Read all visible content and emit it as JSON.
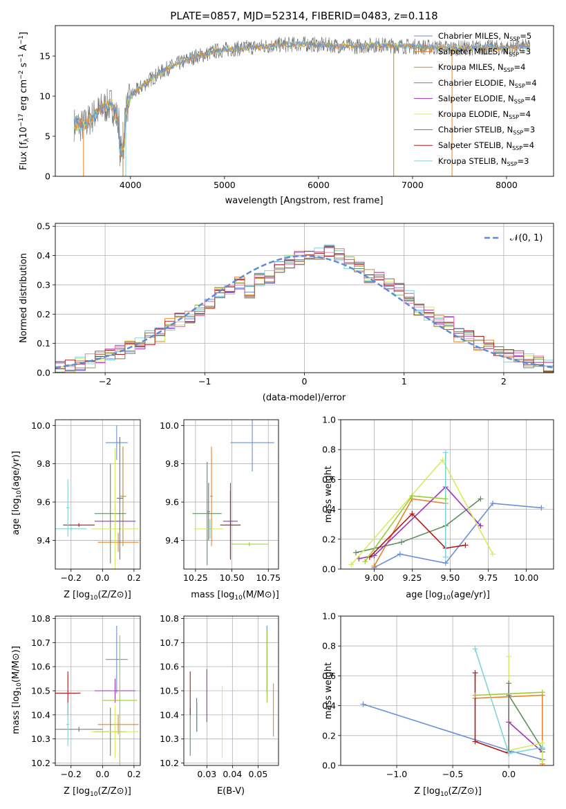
{
  "figure_title": "PLATE=0857, MJD=52314, FIBERID=0483, z=0.118",
  "models": [
    {
      "label": "Chabrier MILES, N$_{SSP}$=5",
      "legend": "Chabrier MILES, N",
      "n": "=5",
      "color": "#6a8fd6"
    },
    {
      "label": "Salpeter MILES, N$_{SSP}$=3",
      "legend": "Salpeter MILES, N",
      "n": "=3",
      "color": "#e8822a"
    },
    {
      "label": "Kroupa MILES, N$_{SSP}$=4",
      "legend": "Kroupa MILES, N",
      "n": "=4",
      "color": "#c08a2c"
    },
    {
      "label": "Chabrier ELODIE, N$_{SSP}$=4",
      "legend": "Chabrier ELODIE, N",
      "n": "=4",
      "color": "#5c8f5c"
    },
    {
      "label": "Salpeter ELODIE, N$_{SSP}$=4",
      "legend": "Salpeter ELODIE, N",
      "n": "=4",
      "color": "#a030b8"
    },
    {
      "label": "Kroupa ELODIE, N$_{SSP}$=4",
      "legend": "Kroupa ELODIE, N",
      "n": "=4",
      "color": "#d8ea60"
    },
    {
      "label": "Chabrier STELIB, N$_{SSP}$=3",
      "legend": "Chabrier STELIB, N",
      "n": "=3",
      "color": "#707070"
    },
    {
      "label": "Salpeter STELIB, N$_{SSP}$=4",
      "legend": "Salpeter STELIB, N",
      "n": "=4",
      "color": "#b01818"
    },
    {
      "label": "Kroupa STELIB, N$_{SSP}$=3",
      "legend": "Kroupa STELIB, N",
      "n": "=3",
      "color": "#7fd3dc"
    }
  ],
  "legend_sub": "SSP",
  "chart_data": [
    {
      "type": "line",
      "xlabel": "wavelength [Angstrom, rest frame]",
      "ylabel": "Flux [f",
      "ylabel_full": "Flux [f_λ 10^-17 erg cm^-2 s^-1 A^-1]",
      "ylabel_parts": [
        "λ",
        "10",
        "−17",
        " erg cm",
        "−2",
        " s",
        "−1",
        " A",
        "−1",
        "]"
      ],
      "xlim": [
        3200,
        8500
      ],
      "ylim": [
        0,
        18.8
      ],
      "xticks": [
        "4000",
        "5000",
        "6000",
        "7000",
        "8000"
      ],
      "yticks": [
        "0",
        "5",
        "10",
        "15"
      ],
      "spectrum_envelope": {
        "x": [
          3400,
          3500,
          3600,
          3700,
          3800,
          3900,
          4000,
          4100,
          4200,
          4300,
          4400,
          4500,
          4600,
          4700,
          4800,
          4900,
          5000,
          5200,
          5400,
          5600,
          5800,
          6000,
          6200,
          6400,
          6600,
          6800,
          7000,
          7200,
          7400,
          7600,
          7800,
          8000,
          8200
        ],
        "y": [
          6.5,
          6.3,
          7.5,
          8.5,
          9.0,
          6.0,
          10.0,
          11.0,
          12.0,
          12.8,
          13.5,
          14.0,
          14.5,
          15.0,
          15.2,
          15.6,
          15.8,
          16.0,
          16.2,
          16.4,
          16.5,
          16.4,
          16.3,
          16.2,
          16.4,
          16.3,
          16.2,
          16.1,
          16.0,
          16.0,
          16.1,
          16.0,
          16.2
        ]
      }
    },
    {
      "type": "histogram",
      "xlabel": "(data-model)/error",
      "ylabel": "Normed distribution",
      "xlim": [
        -2.5,
        2.5
      ],
      "ylim": [
        0,
        0.51
      ],
      "xticks": [
        "−2",
        "−1",
        "0",
        "1",
        "2"
      ],
      "yticks": [
        "0.0",
        "0.1",
        "0.2",
        "0.3",
        "0.4",
        "0.5"
      ],
      "legend": "𝒩(0, 1)",
      "bin_width": 0.1,
      "bins_start": -2.5,
      "density_mean": [
        0.02,
        0.025,
        0.03,
        0.04,
        0.05,
        0.06,
        0.07,
        0.09,
        0.1,
        0.12,
        0.13,
        0.16,
        0.18,
        0.19,
        0.21,
        0.24,
        0.28,
        0.29,
        0.31,
        0.28,
        0.32,
        0.33,
        0.36,
        0.38,
        0.39,
        0.4,
        0.41,
        0.42,
        0.41,
        0.38,
        0.36,
        0.33,
        0.32,
        0.3,
        0.28,
        0.26,
        0.22,
        0.2,
        0.18,
        0.17,
        0.13,
        0.12,
        0.1,
        0.09,
        0.07,
        0.06,
        0.05,
        0.04,
        0.04,
        0.02
      ]
    },
    {
      "type": "scatter",
      "xlabel": "Z [log",
      "xlabel_full": "Z [log10(Z/Z⊙)]",
      "ylabel": "age  [log",
      "ylabel_full": "age [log10(age/yr)]",
      "xlim": [
        -0.3,
        0.24
      ],
      "ylim": [
        9.25,
        10.03
      ],
      "xticks": [
        "−0.2",
        "0.0",
        "0.2"
      ],
      "yticks": [
        "9.4",
        "9.6",
        "9.8",
        "10.0"
      ],
      "points": [
        {
          "model": 0,
          "x": 0.09,
          "y": 9.91,
          "xerr": 0.07,
          "yerr": 0.09
        },
        {
          "model": 1,
          "x": 0.1,
          "y": 9.39,
          "xerr": 0.13,
          "yerr": 0.05
        },
        {
          "model": 2,
          "x": 0.13,
          "y": 9.63,
          "xerr": 0.02,
          "yerr": 0.26
        },
        {
          "model": 3,
          "x": 0.05,
          "y": 9.54,
          "xerr": 0.1,
          "yerr": 0.26
        },
        {
          "model": 4,
          "x": 0.08,
          "y": 9.5,
          "xerr": 0.13,
          "yerr": 0.08
        },
        {
          "model": 5,
          "x": 0.08,
          "y": 9.46,
          "xerr": 0.15,
          "yerr": 0.42
        },
        {
          "model": 6,
          "x": 0.11,
          "y": 9.62,
          "xerr": 0.02,
          "yerr": 0.32
        },
        {
          "model": 7,
          "x": -0.15,
          "y": 9.48,
          "xerr": 0.1,
          "yerr": 0.01
        },
        {
          "model": 8,
          "x": -0.22,
          "y": 9.57,
          "xerr": 0.01,
          "yerr": 0.15
        },
        {
          "model": 8,
          "x": -0.2,
          "y": 9.46,
          "xerr": 0.1,
          "yerr": 0.01
        }
      ]
    },
    {
      "type": "scatter",
      "xlabel": "mass [log",
      "xlabel_full": "mass [log10(M/M⊙)]",
      "ylabel": "",
      "xlim": [
        10.17,
        10.82
      ],
      "ylim": [
        9.25,
        10.03
      ],
      "xticks": [
        "10.25",
        "10.50",
        "10.75"
      ],
      "yticks": [
        "9.4",
        "9.6",
        "9.8",
        "10.0"
      ],
      "points": [
        {
          "model": 0,
          "x": 10.64,
          "y": 9.91,
          "xerr": 0.15,
          "yerr": 0.15
        },
        {
          "model": 1,
          "x": 10.36,
          "y": 9.63,
          "xerr": 0.01,
          "yerr": 0.26
        },
        {
          "model": 3,
          "x": 10.33,
          "y": 9.54,
          "xerr": 0.1,
          "yerr": 0.27
        },
        {
          "model": 4,
          "x": 10.49,
          "y": 9.5,
          "xerr": 0.05,
          "yerr": 0.2
        },
        {
          "model": 5,
          "x": 10.34,
          "y": 9.46,
          "xerr": 0.1,
          "yerr": 0.05
        },
        {
          "model": 6,
          "x": 10.34,
          "y": 9.55,
          "xerr": 0.01,
          "yerr": 0.15
        },
        {
          "model": 7,
          "x": 10.49,
          "y": 9.48,
          "xerr": 0.07,
          "yerr": 0.18
        },
        {
          "model": 8,
          "x": 10.35,
          "y": 9.46,
          "xerr": 0.01,
          "yerr": 0.05
        },
        {
          "model": 9,
          "x": 10.62,
          "y": 9.38,
          "xerr": 0.13,
          "yerr": 0.01
        }
      ]
    },
    {
      "type": "line",
      "xlabel": "age  [log",
      "xlabel_full": "age [log10(age/yr)]",
      "ylabel": "mass weight",
      "xlim": [
        8.78,
        10.18
      ],
      "ylim": [
        0,
        1
      ],
      "xticks": [
        "9.00",
        "9.25",
        "9.50",
        "9.75",
        "10.00"
      ],
      "yticks": [
        "0.0",
        "0.2",
        "0.4",
        "0.6",
        "0.8",
        "1.0"
      ],
      "series": [
        {
          "model": 0,
          "x": [
            9.0,
            9.17,
            9.47,
            9.78,
            10.1
          ],
          "y": [
            0.01,
            0.1,
            0.04,
            0.44,
            0.41
          ]
        },
        {
          "model": 1,
          "x": [
            9.0,
            9.25,
            9.47
          ],
          "y": [
            0.02,
            0.47,
            0.44
          ]
        },
        {
          "model": 3,
          "x": [
            8.88,
            9.18,
            9.47,
            9.7
          ],
          "y": [
            0.11,
            0.18,
            0.29,
            0.47
          ]
        },
        {
          "model": 4,
          "x": [
            8.9,
            9.0,
            9.47,
            9.7
          ],
          "y": [
            0.07,
            0.09,
            0.55,
            0.29
          ]
        },
        {
          "model": 5,
          "x": [
            8.85,
            9.45,
            9.78
          ],
          "y": [
            0.03,
            0.73,
            0.1
          ]
        },
        {
          "model": 7,
          "x": [
            8.97,
            9.25,
            9.47,
            9.6
          ],
          "y": [
            0.08,
            0.37,
            0.14,
            0.16
          ]
        },
        {
          "model": 8,
          "x": [
            9.47,
            9.47
          ],
          "y": [
            0.78,
            0.08
          ]
        },
        {
          "model": 9,
          "x": [
            8.94,
            9.25,
            9.47
          ],
          "y": [
            0.05,
            0.49,
            0.47
          ]
        }
      ]
    },
    {
      "type": "scatter",
      "xlabel": "Z [log",
      "xlabel_full": "Z [log10(Z/Z⊙)]",
      "ylabel": "mass [log",
      "ylabel_full": "mass [log10(M/M⊙)]",
      "xlim": [
        -0.3,
        0.24
      ],
      "ylim": [
        10.19,
        10.81
      ],
      "xticks": [
        "−0.2",
        "0.0",
        "0.2"
      ],
      "yticks": [
        "10.2",
        "10.3",
        "10.4",
        "10.5",
        "10.6",
        "10.7",
        "10.8"
      ],
      "points": [
        {
          "model": 0,
          "x": 0.09,
          "y": 10.63,
          "xerr": 0.07,
          "yerr": 0.14
        },
        {
          "model": 1,
          "x": 0.1,
          "y": 10.36,
          "xerr": 0.13,
          "yerr": 0.04
        },
        {
          "model": 3,
          "x": 0.05,
          "y": 10.33,
          "xerr": 0.1,
          "yerr": 0.1
        },
        {
          "model": 4,
          "x": 0.08,
          "y": 10.5,
          "xerr": 0.13,
          "yerr": 0.05
        },
        {
          "model": 5,
          "x": 0.08,
          "y": 10.33,
          "xerr": 0.15,
          "yerr": 0.11
        },
        {
          "model": 6,
          "x": -0.15,
          "y": 10.34,
          "xerr": 0.15,
          "yerr": 0.01
        },
        {
          "model": 7,
          "x": -0.22,
          "y": 10.49,
          "xerr": 0.08,
          "yerr": 0.09
        },
        {
          "model": 8,
          "x": -0.22,
          "y": 10.36,
          "xerr": 0.01,
          "yerr": 0.09
        },
        {
          "model": 9,
          "x": 0.11,
          "y": 10.46,
          "xerr": 0.11,
          "yerr": 0.27
        }
      ]
    },
    {
      "type": "scatter",
      "xlabel": "E(B-V)",
      "ylabel": "",
      "xlim": [
        0.021,
        0.058
      ],
      "ylim": [
        10.19,
        10.81
      ],
      "xticks": [
        "0.03",
        "0.04",
        "0.05"
      ],
      "yticks": [
        "10.2",
        "10.3",
        "10.4",
        "10.5",
        "10.6",
        "10.7",
        "10.8"
      ],
      "points": [
        {
          "model": 0,
          "x": 0.0535,
          "y": 10.63,
          "yerr": 0.14
        },
        {
          "model": 1,
          "x": 0.056,
          "y": 10.42,
          "yerr": 0.11
        },
        {
          "model": 3,
          "x": 0.0235,
          "y": 10.33,
          "yerr": 0.1
        },
        {
          "model": 4,
          "x": 0.03,
          "y": 10.48,
          "yerr": 0.11
        },
        {
          "model": 5,
          "x": 0.036,
          "y": 10.37,
          "yerr": 0.15
        },
        {
          "model": 6,
          "x": 0.026,
          "y": 10.4,
          "yerr": 0.07
        },
        {
          "model": 7,
          "x": 0.0235,
          "y": 10.49,
          "yerr": 0.09
        },
        {
          "model": 8,
          "x": 0.0262,
          "y": 10.39,
          "yerr": 0.06
        },
        {
          "model": 9,
          "x": 0.0535,
          "y": 10.6,
          "yerr": 0.15
        }
      ]
    },
    {
      "type": "line",
      "xlabel": "Z [log",
      "xlabel_full": "Z [log10(Z/Z⊙)]",
      "ylabel": "mass weight",
      "xlim": [
        -1.5,
        0.4
      ],
      "ylim": [
        0,
        1
      ],
      "xticks": [
        "−1.0",
        "−0.5",
        "0.0"
      ],
      "yticks": [
        "0.0",
        "0.2",
        "0.4",
        "0.6",
        "0.8",
        "1.0"
      ],
      "series": [
        {
          "model": 0,
          "x": [
            -1.3,
            0.0,
            0.3
          ],
          "y": [
            0.41,
            0.1,
            0.04
          ]
        },
        {
          "model": 1,
          "x": [
            -0.3,
            0.3,
            0.3
          ],
          "y": [
            0.45,
            0.47,
            0.01
          ]
        },
        {
          "model": 3,
          "x": [
            0.0,
            0.3
          ],
          "y": [
            0.47,
            0.11
          ]
        },
        {
          "model": 4,
          "x": [
            0.0,
            0.3
          ],
          "y": [
            0.29,
            0.09
          ]
        },
        {
          "model": 5,
          "x": [
            0.0,
            0.0,
            0.3,
            0.3
          ],
          "y": [
            0.73,
            0.1,
            0.15,
            0.03
          ]
        },
        {
          "model": 6,
          "x": [
            0.0,
            0.0
          ],
          "y": [
            0.55,
            0.09
          ]
        },
        {
          "model": 7,
          "x": [
            -0.3,
            -0.3,
            0.0
          ],
          "y": [
            0.62,
            0.16,
            0.08
          ]
        },
        {
          "model": 8,
          "x": [
            -0.3,
            0.0,
            0.3
          ],
          "y": [
            0.78,
            0.08,
            0.12
          ]
        },
        {
          "model": 9,
          "x": [
            -0.3,
            0.3
          ],
          "y": [
            0.47,
            0.49
          ]
        }
      ]
    }
  ]
}
